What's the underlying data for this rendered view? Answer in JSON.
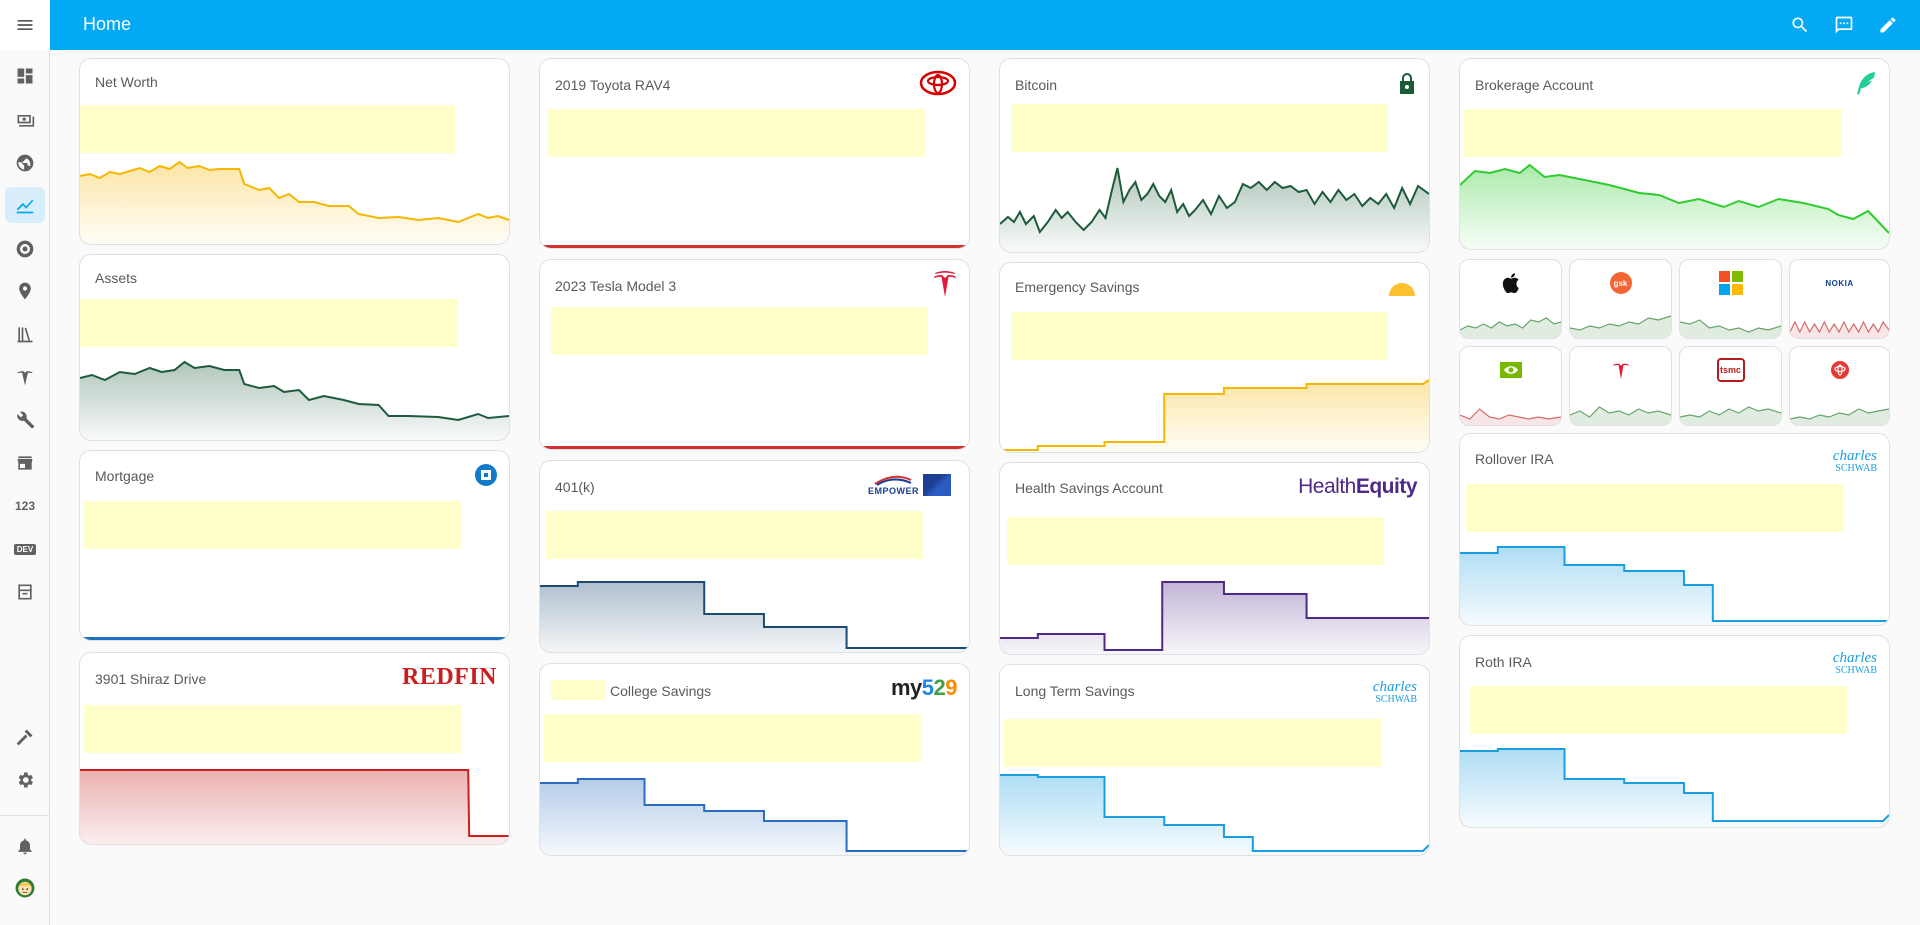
{
  "header": {
    "title": "Home"
  },
  "sidebar": {
    "items": [
      "menu-icon",
      "dashboard-icon",
      "cash-icon",
      "globe-icon",
      "chart-icon",
      "target-icon",
      "map-pin-icon",
      "library-icon",
      "tesla-icon",
      "wrench-icon",
      "store-icon",
      "numbers-icon",
      "dev-icon",
      "archive-icon",
      "hammer-icon",
      "settings-icon",
      "bell-icon",
      "avatar"
    ],
    "numbers_label": "123",
    "dev_label": "DEV"
  },
  "cards": {
    "net_worth": {
      "title": "Net Worth"
    },
    "assets": {
      "title": "Assets"
    },
    "mortgage": {
      "title": "Mortgage"
    },
    "shiraz": {
      "title": "3901 Shiraz Drive",
      "logo": "REDFIN"
    },
    "rav4": {
      "title": "2019 Toyota RAV4"
    },
    "tesla3": {
      "title": "2023 Tesla Model 3"
    },
    "k401": {
      "title": "401(k)",
      "logo": "EMPOWER"
    },
    "college": {
      "title": "College Savings",
      "logo_a": "my",
      "logo_b": "5",
      "logo_c": "2",
      "logo_d": "9"
    },
    "bitcoin": {
      "title": "Bitcoin"
    },
    "emergency": {
      "title": "Emergency Savings"
    },
    "hsa": {
      "title": "Health Savings Account",
      "logo_a": "Health",
      "logo_b": "Equity"
    },
    "longterm": {
      "title": "Long Term Savings",
      "logo_a": "charles",
      "logo_b": "SCHWAB"
    },
    "brokerage": {
      "title": "Brokerage Account"
    },
    "rollover": {
      "title": "Rollover IRA",
      "logo_a": "charles",
      "logo_b": "SCHWAB"
    },
    "roth": {
      "title": "Roth IRA",
      "logo_a": "charles",
      "logo_b": "SCHWAB"
    }
  },
  "stocks": [
    {
      "logo": "apple-logo",
      "trend": "green"
    },
    {
      "logo": "gsk-logo",
      "text": "gsk",
      "trend": "green"
    },
    {
      "logo": "microsoft-logo",
      "trend": "green"
    },
    {
      "logo": "nokia-logo",
      "text": "NOKIA",
      "trend": "red"
    },
    {
      "logo": "nvidia-logo",
      "trend": "red"
    },
    {
      "logo": "tesla-logo",
      "trend": "green"
    },
    {
      "logo": "tsmc-logo",
      "text": "tsmc",
      "trend": "green"
    },
    {
      "logo": "toyota-logo",
      "trend": "green"
    }
  ],
  "colors": {
    "header": "#03a9f4",
    "netWorth": "#f6b700",
    "assets": "#1e5b3d",
    "mortgage": "#1e6fc0",
    "redfin": "#c82021",
    "zero": "#d32f2f",
    "k401": "#1c4a72",
    "college": "#2a6cc0",
    "bitcoin": "#1b5b3b",
    "emergency": "#f6b700",
    "hsa": "#4e2a86",
    "schwab": "#1a9ee0",
    "brokerage": "#2fcc2f"
  }
}
